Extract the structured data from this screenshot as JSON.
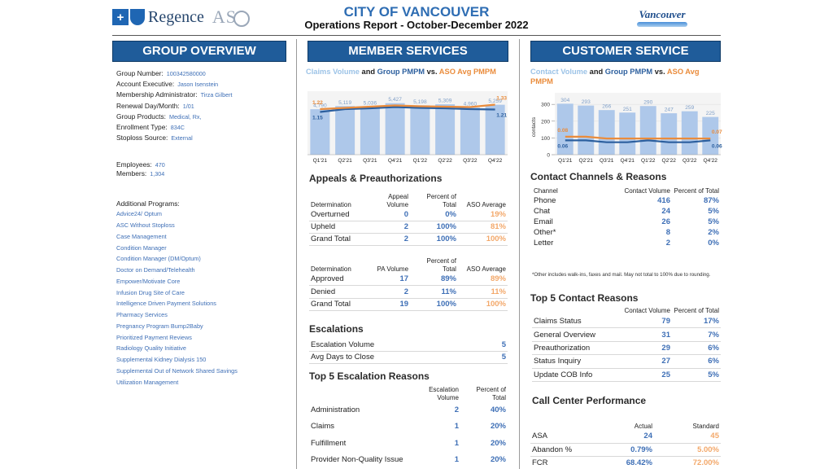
{
  "header": {
    "brand": "Regence",
    "brand_cross": "+",
    "aso": "AS",
    "title": "CITY OF VANCOUVER",
    "subtitle": "Operations Report - October-December 2022",
    "city_logo": "Vancouver"
  },
  "group_overview": {
    "banner": "GROUP OVERVIEW",
    "fields": [
      {
        "label": "Group Number:",
        "value": "100342580000"
      },
      {
        "label": "Account Executive:",
        "value": "Jason Isenstein"
      },
      {
        "label": "Membership Administrator:",
        "value": "Tirza Gilbert"
      },
      {
        "label": "Renewal Day/Month:",
        "value": "1/01"
      },
      {
        "label": "Group Products:",
        "value": "Medical, Rx,"
      },
      {
        "label": "Enrollment Type:",
        "value": "834C"
      },
      {
        "label": "Stoploss Source:",
        "value": "External"
      }
    ],
    "counts": [
      {
        "label": "Employees:",
        "value": "470"
      },
      {
        "label": "Members:",
        "value": "1,304"
      }
    ],
    "programs_title": "Additional Programs:",
    "programs": [
      "Advice24/ Optum",
      "ASC Without Stoploss",
      "Case Management",
      "Condition Manager",
      "Condition Manager (DM/Optum)",
      "Doctor on Demand/Telehealth",
      "Empower/Motivate Core",
      "Infusion Drug Site of Care",
      "Intelligence Driven Payment Solutions",
      "Pharmacy Services",
      "Pregnancy Program Bump2Baby",
      "Prioritized Payment Reviews",
      "Radiology Quality Initiative",
      "Supplemental Kidney Dialysis 150",
      "Supplemental Out of Network Shared Savings",
      "Utilization Management"
    ]
  },
  "member_services": {
    "banner": "MEMBER SERVICES",
    "chart_title": {
      "part1": "Claims Volume",
      "part2": " and ",
      "part3": "Group PMPM",
      "part4": " vs. ",
      "part5": "ASO Avg PMPM"
    },
    "appeals_title": "Appeals & Preauthorizations",
    "appeals_headers": [
      "Determination",
      "Appeal Volume",
      "Percent of Total",
      "ASO Average"
    ],
    "appeals_rows": [
      {
        "label": "Overturned",
        "volume": "0",
        "pct": "0%",
        "avg": "19%"
      },
      {
        "label": "Upheld",
        "volume": "2",
        "pct": "100%",
        "avg": "81%"
      },
      {
        "label": "Grand Total",
        "volume": "2",
        "pct": "100%",
        "avg": "100%"
      }
    ],
    "pa_headers": [
      "Determination",
      "PA Volume",
      "Percent of Total",
      "ASO Average"
    ],
    "pa_rows": [
      {
        "label": "Approved",
        "volume": "17",
        "pct": "89%",
        "avg": "89%"
      },
      {
        "label": "Denied",
        "volume": "2",
        "pct": "11%",
        "avg": "11%"
      },
      {
        "label": "Grand Total",
        "volume": "19",
        "pct": "100%",
        "avg": "100%"
      }
    ],
    "escalations_title": "Escalations",
    "escalations_rows": [
      {
        "label": "Escalation Volume",
        "value": "5"
      },
      {
        "label": "Avg Days to Close",
        "value": "5"
      }
    ],
    "top5_esc_title": "Top 5 Escalation Reasons",
    "top5_esc_headers": [
      "Escalation Volume",
      "Percent of Total"
    ],
    "top5_esc_rows": [
      {
        "label": "Administration",
        "volume": "2",
        "pct": "40%"
      },
      {
        "label": "Claims",
        "volume": "1",
        "pct": "20%"
      },
      {
        "label": "Fulfillment",
        "volume": "1",
        "pct": "20%"
      },
      {
        "label": "Provider Non-Quality Issue",
        "volume": "1",
        "pct": "20%"
      }
    ]
  },
  "customer_service": {
    "banner": "CUSTOMER SERVICE",
    "chart_title": {
      "part1": "Contact Volume",
      "part2": " and ",
      "part3": "Group PMPM",
      "part4": " vs. ",
      "part5": "ASO Avg PMPM"
    },
    "channels_title": "Contact Channels & Reasons",
    "channels_headers": [
      "Channel",
      "Contact Volume",
      "Percent of Total"
    ],
    "channels_rows": [
      {
        "label": "Phone",
        "volume": "416",
        "pct": "87%"
      },
      {
        "label": "Chat",
        "volume": "24",
        "pct": "5%"
      },
      {
        "label": "Email",
        "volume": "26",
        "pct": "5%"
      },
      {
        "label": "Other*",
        "volume": "8",
        "pct": "2%"
      },
      {
        "label": "Letter",
        "volume": "2",
        "pct": "0%"
      }
    ],
    "channels_note": "*Other includes walk-ins, faxes and mail. May not total to 100% due to rounding.",
    "top5_title": "Top 5 Contact Reasons",
    "top5_headers": [
      "Contact Volume",
      "Percent of Total"
    ],
    "top5_rows": [
      {
        "label": "Claims Status",
        "volume": "79",
        "pct": "17%"
      },
      {
        "label": "General Overview",
        "volume": "31",
        "pct": "7%"
      },
      {
        "label": "Preauthorization",
        "volume": "29",
        "pct": "6%"
      },
      {
        "label": "Status Inquiry",
        "volume": "27",
        "pct": "6%"
      },
      {
        "label": "Update COB Info",
        "volume": "25",
        "pct": "5%"
      }
    ],
    "ccp_title": "Call Center Performance",
    "ccp_headers": [
      "Actual",
      "Standard"
    ],
    "ccp_rows": [
      {
        "label": "ASA",
        "actual": "24",
        "standard": "45"
      },
      {
        "label": "Abandon %",
        "actual": "0.79%",
        "standard": "5.00%"
      },
      {
        "label": "FCR",
        "actual": "68.42%",
        "standard": "72.00%"
      }
    ]
  },
  "chart_data": [
    {
      "type": "bar",
      "categories": [
        "Q1'21",
        "Q2'21",
        "Q3'21",
        "Q4'21",
        "Q1'22",
        "Q2'22",
        "Q3'22",
        "Q4'22"
      ],
      "series": [
        {
          "name": "Claims Volume",
          "values": [
            4790,
            5119,
            5036,
            5427,
            5198,
            5309,
            4960,
            5259
          ],
          "labels": [
            "4,790",
            "5,119",
            "5,036",
            "5,427",
            "5,198",
            "5,309",
            "4,960",
            "5,259"
          ],
          "color": "#aec8ea"
        },
        {
          "name": "Group PMPM",
          "values": [
            1.15,
            1.22,
            1.24,
            1.27,
            1.25,
            1.24,
            1.22,
            1.21
          ],
          "first_label": "1.15",
          "last_label": "1.21",
          "color": "#2c5f9e"
        },
        {
          "name": "ASO Avg PMPM",
          "values": [
            1.22,
            1.25,
            1.28,
            1.31,
            1.29,
            1.28,
            1.27,
            1.33
          ],
          "first_label": "1.22",
          "last_label": "1.33",
          "color": "#ea8c3c"
        }
      ],
      "ylim": [
        0,
        6000
      ]
    },
    {
      "type": "bar",
      "categories": [
        "Q1'21",
        "Q2'21",
        "Q3'21",
        "Q4'21",
        "Q1'22",
        "Q2'22",
        "Q3'22",
        "Q4'22"
      ],
      "series": [
        {
          "name": "Contact Volume",
          "values": [
            304,
            293,
            266,
            251,
            290,
            247,
            259,
            225
          ],
          "labels": [
            "304",
            "293",
            "266",
            "251",
            "290",
            "247",
            "259",
            "225"
          ],
          "color": "#aec8ea"
        },
        {
          "name": "Group PMPM",
          "values": [
            0.06,
            0.06,
            0.05,
            0.05,
            0.06,
            0.05,
            0.05,
            0.06
          ],
          "first_label": "0.06",
          "last_label": "0.06",
          "color": "#2c5f9e"
        },
        {
          "name": "ASO Avg PMPM",
          "values": [
            0.08,
            0.08,
            0.07,
            0.07,
            0.07,
            0.07,
            0.07,
            0.07
          ],
          "first_label": "0.08",
          "last_label": "0.07",
          "color": "#ea8c3c"
        }
      ],
      "ylabel": "contacts",
      "yticks": [
        "0",
        "100",
        "200",
        "300"
      ],
      "ylim": [
        0,
        330
      ]
    }
  ]
}
